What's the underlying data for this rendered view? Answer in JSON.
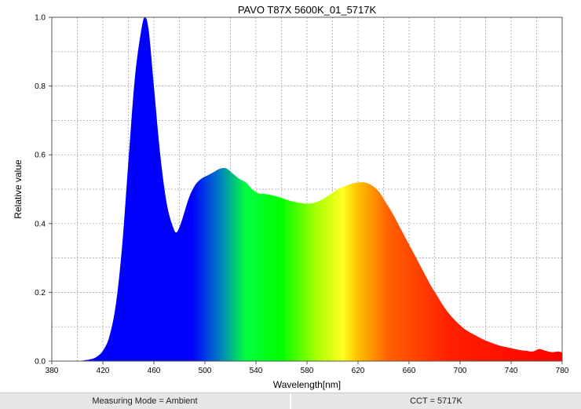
{
  "chart_data": {
    "type": "area",
    "title": "PAVO T87X 5600K_01_5717K",
    "xlabel": "Wavelength[nm]",
    "ylabel": "Relative value",
    "xlim": [
      380,
      780
    ],
    "ylim": [
      0,
      1.0
    ],
    "x_ticks": [
      380,
      420,
      460,
      500,
      540,
      580,
      620,
      660,
      700,
      740,
      780
    ],
    "y_ticks": [
      0.0,
      0.2,
      0.4,
      0.6,
      0.8,
      1.0
    ],
    "x_tick_labels": [
      "380",
      "420",
      "460",
      "500",
      "540",
      "580",
      "620",
      "660",
      "700",
      "740",
      "780"
    ],
    "y_tick_labels": [
      "0.0",
      "0.2",
      "0.4",
      "0.6",
      "0.8",
      "1.0"
    ],
    "grid": true,
    "fill": "visible-spectrum gradient",
    "series": [
      {
        "x": [
          380,
          400,
          405,
          410,
          415,
          420,
          425,
          430,
          435,
          440,
          445,
          450,
          453,
          456,
          460,
          465,
          470,
          475,
          478,
          482,
          487,
          492,
          497,
          502,
          507,
          512,
          517,
          522,
          527,
          532,
          537,
          542,
          547,
          552,
          557,
          562,
          567,
          572,
          577,
          582,
          587,
          592,
          597,
          602,
          607,
          612,
          617,
          622,
          627,
          632,
          637,
          642,
          647,
          652,
          657,
          662,
          667,
          672,
          677,
          682,
          687,
          692,
          697,
          702,
          707,
          712,
          717,
          722,
          727,
          732,
          737,
          742,
          747,
          752,
          757,
          762,
          767,
          772,
          777,
          780
        ],
        "y": [
          0.0,
          0.0,
          0.002,
          0.005,
          0.012,
          0.03,
          0.07,
          0.16,
          0.33,
          0.58,
          0.82,
          0.96,
          1.0,
          0.96,
          0.8,
          0.6,
          0.46,
          0.39,
          0.375,
          0.41,
          0.47,
          0.51,
          0.53,
          0.54,
          0.55,
          0.56,
          0.56,
          0.545,
          0.53,
          0.52,
          0.5,
          0.488,
          0.486,
          0.483,
          0.478,
          0.472,
          0.466,
          0.462,
          0.459,
          0.458,
          0.462,
          0.47,
          0.482,
          0.495,
          0.505,
          0.512,
          0.518,
          0.52,
          0.518,
          0.508,
          0.49,
          0.46,
          0.43,
          0.395,
          0.36,
          0.325,
          0.29,
          0.255,
          0.22,
          0.19,
          0.16,
          0.135,
          0.115,
          0.098,
          0.085,
          0.075,
          0.065,
          0.057,
          0.05,
          0.044,
          0.04,
          0.036,
          0.032,
          0.03,
          0.028,
          0.035,
          0.03,
          0.026,
          0.028,
          0.025
        ]
      }
    ]
  },
  "status": {
    "measuring_mode": "Measuring Mode = Ambient",
    "cct": "CCT = 5717K"
  }
}
